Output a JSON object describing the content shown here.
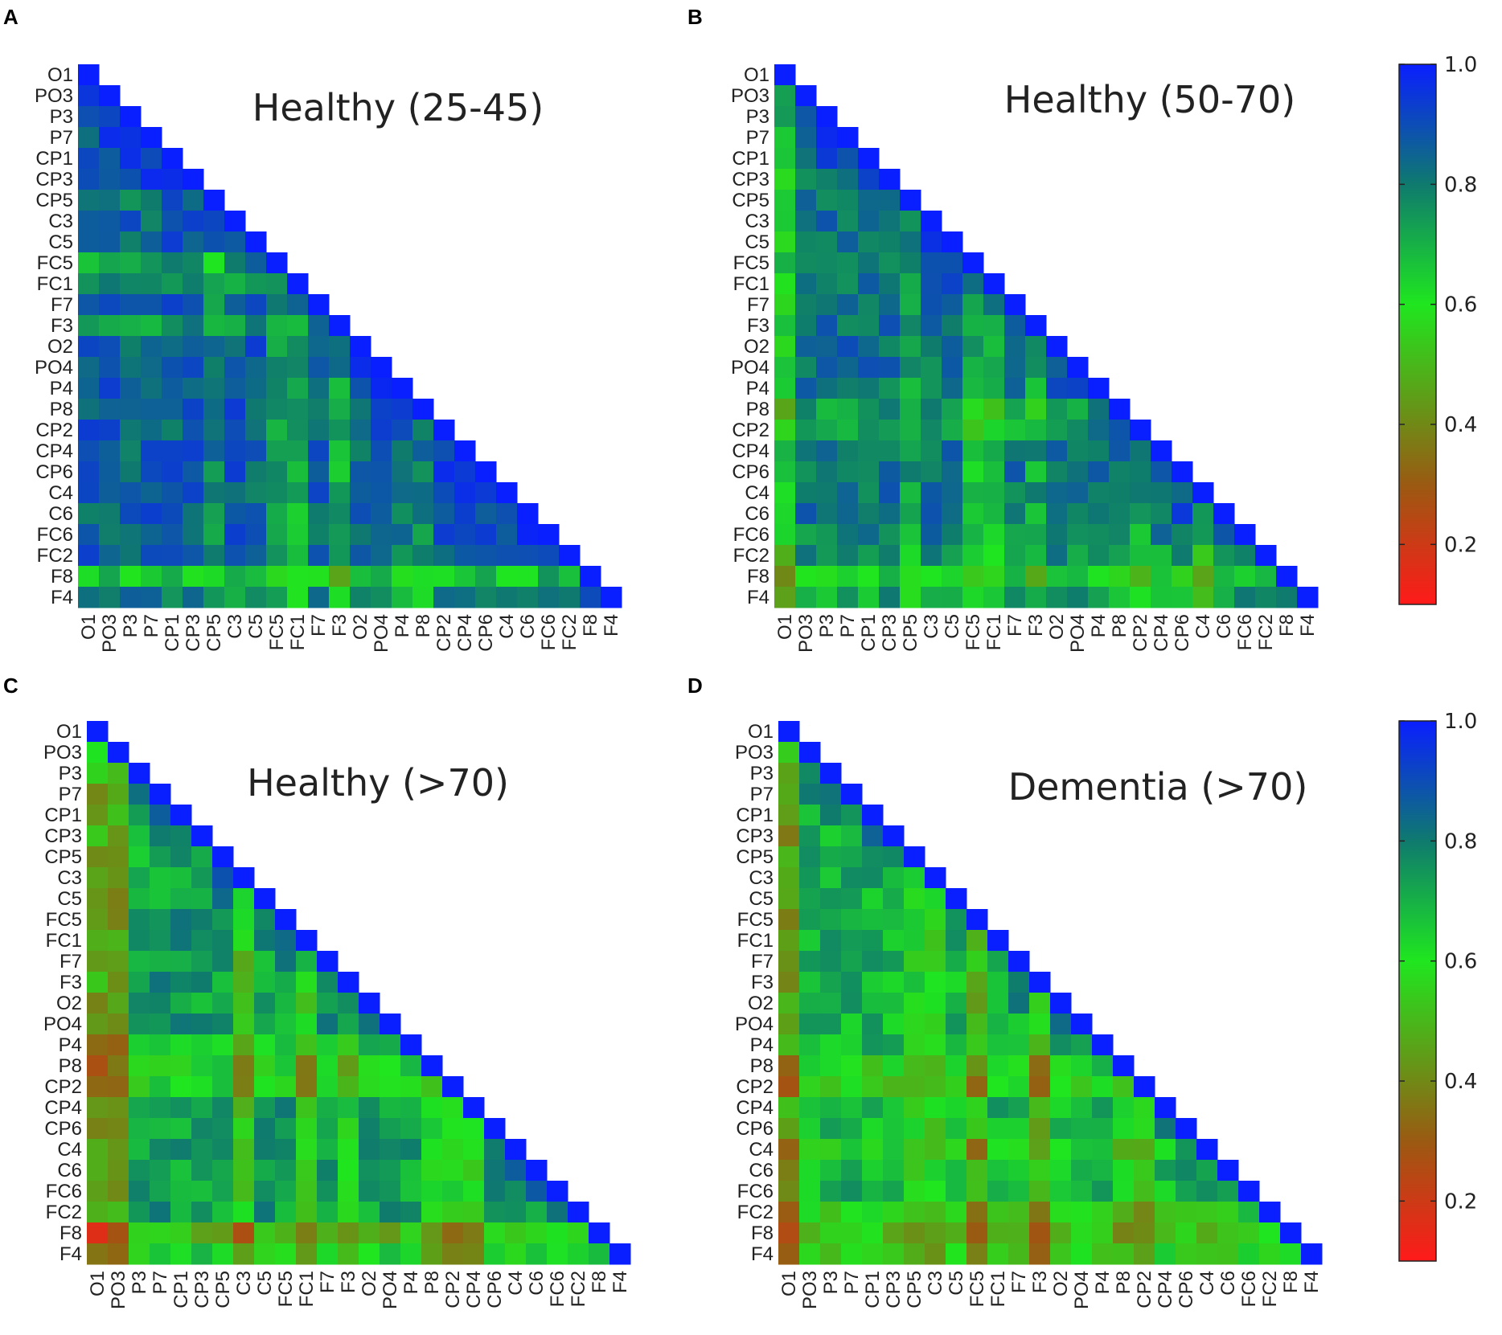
{
  "chart_data": {
    "type": "heatmap",
    "channels": [
      "O1",
      "PO3",
      "P3",
      "P7",
      "CP1",
      "CP3",
      "CP5",
      "C3",
      "C5",
      "FC5",
      "FC1",
      "F7",
      "F3",
      "O2",
      "PO4",
      "P4",
      "P8",
      "CP2",
      "CP4",
      "CP6",
      "C4",
      "C6",
      "FC6",
      "FC2",
      "F8",
      "F4"
    ],
    "x_channels_bottom_row_panels": [
      "O1",
      "PO3",
      "P3",
      "P7",
      "CP1",
      "CP3",
      "CP5",
      "C3",
      "C5",
      "FC5",
      "FC1",
      "F7",
      "F3",
      "O2",
      "PO4",
      "P4",
      "P8",
      "CP2",
      "CP4",
      "CP6",
      "C4",
      "C6",
      "FC6",
      "FC2",
      "F8",
      "F4"
    ],
    "y_channels_panel_C": [
      "O1",
      "PO3",
      "P3",
      "P7",
      "CP1",
      "CP3",
      "CP5",
      "C3",
      "C5",
      "FC5",
      "FC1",
      "F7",
      "F3",
      "O2",
      "PO4",
      "P4",
      "P8",
      "CP2",
      "CP4",
      "CP6",
      "C4",
      "C6",
      "FC6",
      "FC2",
      "F8",
      "F4"
    ],
    "color_scale": {
      "range": [
        0.1,
        1.0
      ],
      "ticks": [
        "0.2",
        "0.4",
        "0.6",
        "0.8",
        "1.0"
      ],
      "tick_values": [
        0.2,
        0.4,
        0.6,
        0.8,
        1.0
      ],
      "stops": [
        {
          "value": 0.1,
          "color": "#ff1a1a"
        },
        {
          "value": 0.3,
          "color": "#9a5a12"
        },
        {
          "value": 0.6,
          "color": "#1fe61f"
        },
        {
          "value": 0.8,
          "color": "#0f7a6e"
        },
        {
          "value": 1.0,
          "color": "#0a1fff"
        }
      ]
    },
    "panels": [
      {
        "letter": "A",
        "title": "Healthy (25-45)",
        "base": 0.86,
        "row_effects": {
          "F8": -0.2,
          "F4": -0.08,
          "FC5": -0.12,
          "FC1": -0.12,
          "F3": -0.1,
          "CP5": -0.05
        },
        "col_effects": {
          "FC5": -0.12,
          "FC1": -0.14,
          "F3": -0.14,
          "CP5": -0.08,
          "P4": -0.06,
          "P8": -0.08
        },
        "block_effects": {
          "F8": -0.18
        }
      },
      {
        "letter": "B",
        "title": "Healthy (50-70)",
        "base": 0.83,
        "row_effects": {
          "F8": -0.2,
          "F4": -0.1,
          "CP2": -0.1,
          "P8": -0.1,
          "FC6": -0.04,
          "FC2": -0.08
        },
        "col_effects": {
          "O1": -0.2,
          "FC5": -0.14,
          "FC1": -0.14,
          "F3": -0.1,
          "CP5": -0.1,
          "CP2": -0.1,
          "C4": -0.14
        },
        "block_effects": {}
      },
      {
        "letter": "C",
        "title": "Healthy (>70)",
        "base": 0.74,
        "row_effects": {
          "F8": -0.24,
          "F4": -0.12,
          "P8": -0.12,
          "CP2": -0.12,
          "P4": -0.1,
          "CP5": -0.06
        },
        "col_effects": {
          "O1": -0.28,
          "PO3": -0.3,
          "C3": -0.2,
          "FC1": -0.2,
          "F3": -0.12,
          "P8": -0.14,
          "CP2": -0.16,
          "CP4": -0.16
        },
        "block_effects": {}
      },
      {
        "letter": "D",
        "title": "Dementia (>70)",
        "base": 0.7,
        "row_effects": {
          "F8": -0.18,
          "F4": -0.12,
          "CP2": -0.14,
          "P8": -0.12,
          "FC2": -0.12,
          "C4": -0.08
        },
        "col_effects": {
          "O1": -0.26,
          "FC5": -0.22,
          "F3": -0.22,
          "C3": -0.12,
          "CP5": -0.1,
          "P8": -0.14,
          "CP2": -0.14
        },
        "block_effects": {}
      }
    ],
    "colorbars": [
      "A-B",
      "C-D"
    ]
  }
}
